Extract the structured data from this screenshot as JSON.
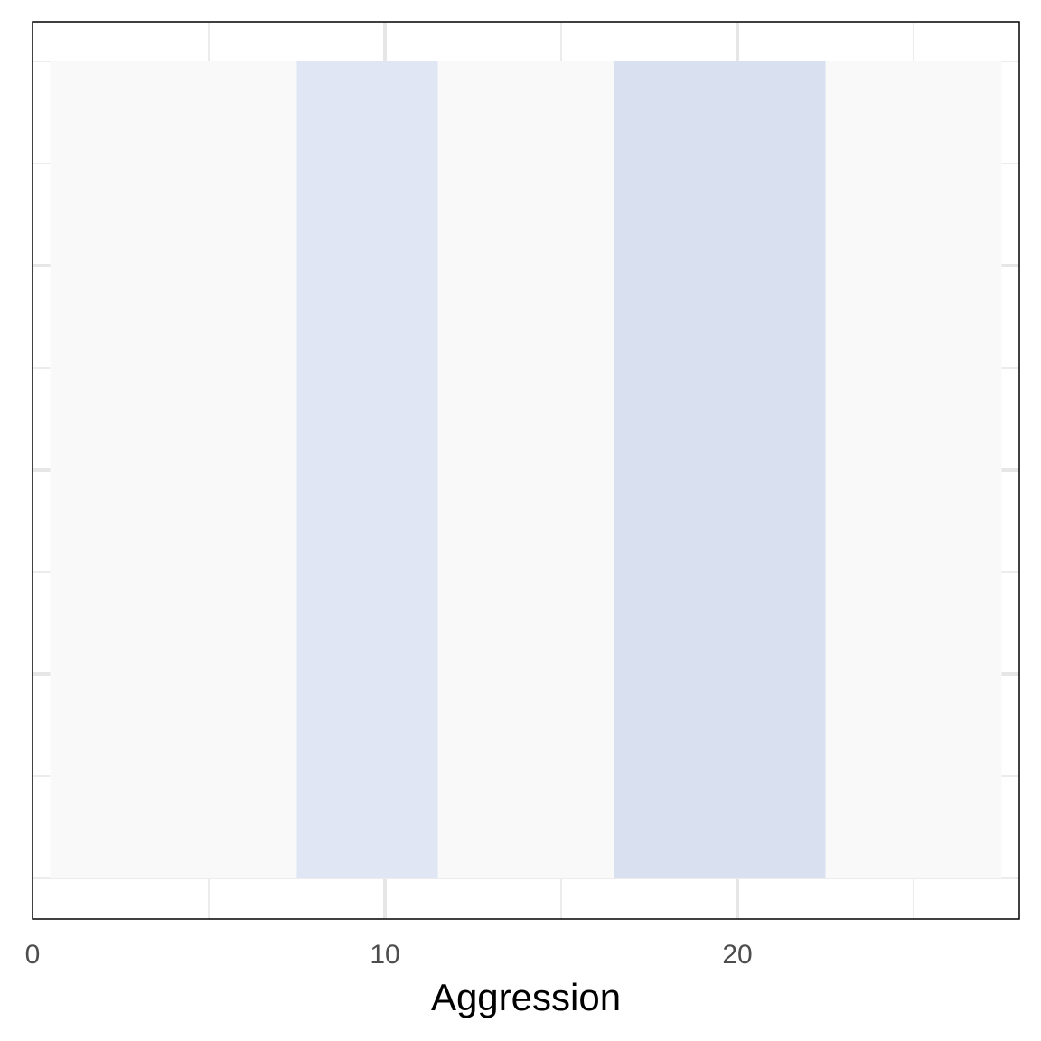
{
  "chart_data": {
    "type": "bar",
    "xlabel": "Aggression",
    "ylabel": "",
    "xlim": [
      0,
      28
    ],
    "x_ticks": [
      0,
      10,
      20
    ],
    "x_tick_labels": [
      "0",
      "10",
      "20"
    ],
    "y_ticks_unlabeled": true,
    "grid": true,
    "legend": "none",
    "bins": [
      {
        "x_start": 0.5,
        "x_end": 7.5,
        "color": "#f9f9f9"
      },
      {
        "x_start": 7.5,
        "x_end": 11.5,
        "color": "#e0e6f3"
      },
      {
        "x_start": 11.5,
        "x_end": 16.5,
        "color": "#f9f9f9"
      },
      {
        "x_start": 16.5,
        "x_end": 22.5,
        "color": "#d9e1f0"
      },
      {
        "x_start": 22.5,
        "x_end": 27.5,
        "color": "#f9f9f9"
      }
    ],
    "colors": {
      "panel_border": "#000000",
      "grid_major": "#e6e6e6",
      "grid_minor": "#ececec",
      "tick_text": "#4d4d4d"
    }
  }
}
